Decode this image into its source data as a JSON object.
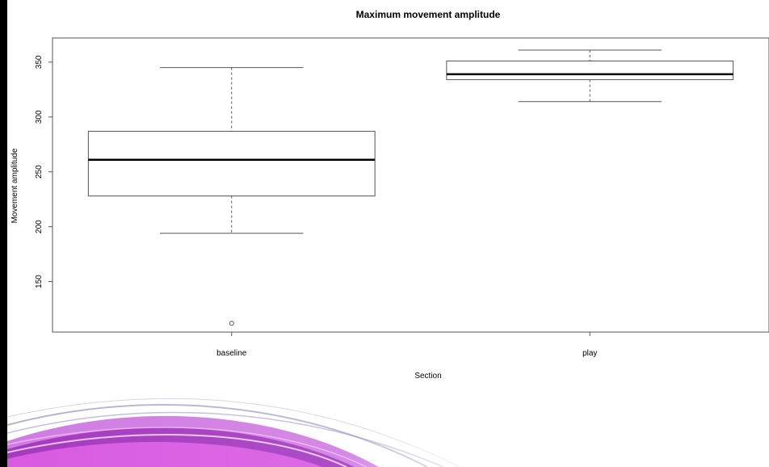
{
  "chart_data": {
    "type": "boxplot",
    "title": "Maximum movement amplitude",
    "xlabel": "Section",
    "ylabel": "Movement amplitude",
    "categories": [
      "baseline",
      "play"
    ],
    "boxes": [
      {
        "category": "baseline",
        "whisker_low": 194,
        "q1": 228,
        "median": 261,
        "q3": 287,
        "whisker_high": 345,
        "outliers": [
          112
        ]
      },
      {
        "category": "play",
        "whisker_low": 314,
        "q1": 334,
        "median": 339,
        "q3": 351,
        "whisker_high": 361,
        "outliers": []
      }
    ],
    "yticks": [
      150,
      200,
      250,
      300,
      350
    ],
    "ylim": [
      104,
      372
    ],
    "grid": false,
    "legend": "none"
  },
  "colors": {
    "box_stroke": "#555555",
    "median": "#000000",
    "background": "#ffffff",
    "decor_left_border": "#000000",
    "decor_swoosh": "#b020c8"
  }
}
